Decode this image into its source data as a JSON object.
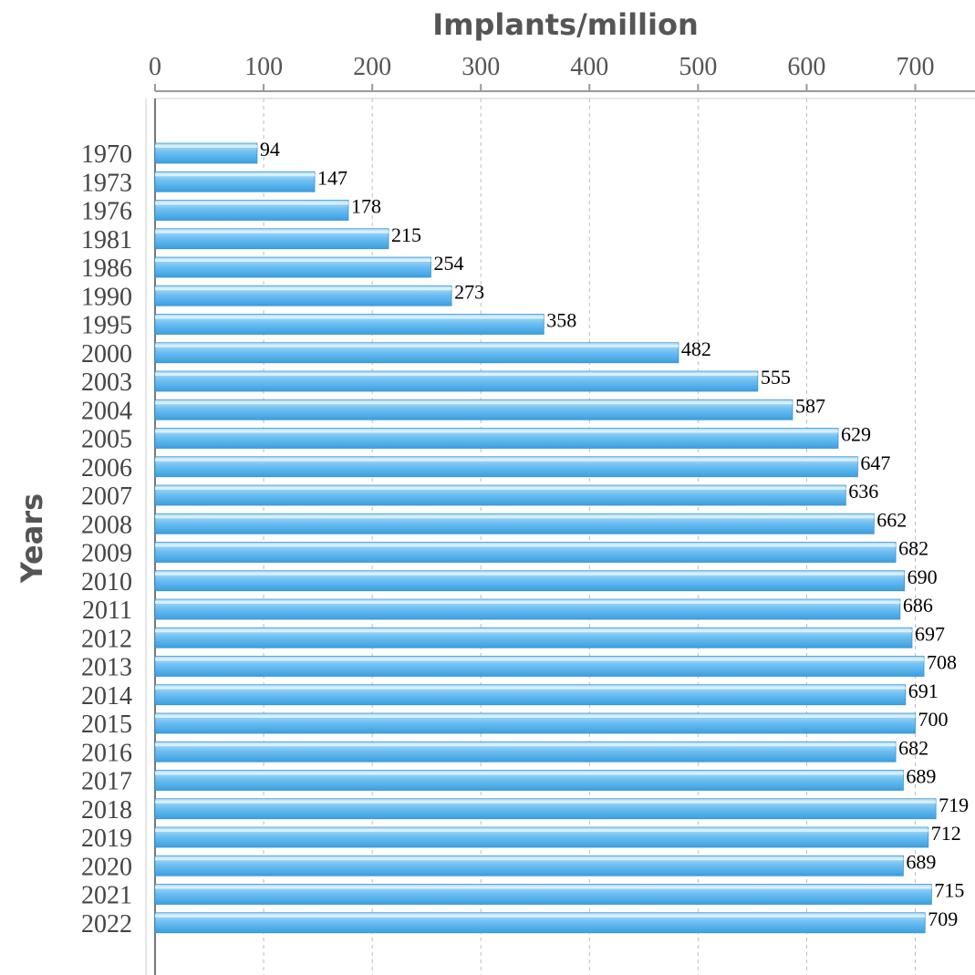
{
  "chart_data": {
    "type": "bar",
    "orientation": "horizontal",
    "xlabel": "Implants/million",
    "ylabel": "Years",
    "xlim": [
      0,
      755
    ],
    "xticks": [
      0,
      100,
      200,
      300,
      400,
      500,
      600,
      700
    ],
    "grid": "vertical dashed",
    "bar_color": "#4fb0ec",
    "categories": [
      "1970",
      "1973",
      "1976",
      "1981",
      "1986",
      "1990",
      "1995",
      "2000",
      "2003",
      "2004",
      "2005",
      "2006",
      "2007",
      "2008",
      "2009",
      "2010",
      "2011",
      "2012",
      "2013",
      "2014",
      "2015",
      "2016",
      "2017",
      "2018",
      "2019",
      "2020",
      "2021",
      "2022"
    ],
    "values": [
      94,
      147,
      178,
      215,
      254,
      273,
      358,
      482,
      555,
      587,
      629,
      647,
      636,
      662,
      682,
      690,
      686,
      697,
      708,
      691,
      700,
      682,
      689,
      719,
      712,
      689,
      715,
      709
    ]
  }
}
